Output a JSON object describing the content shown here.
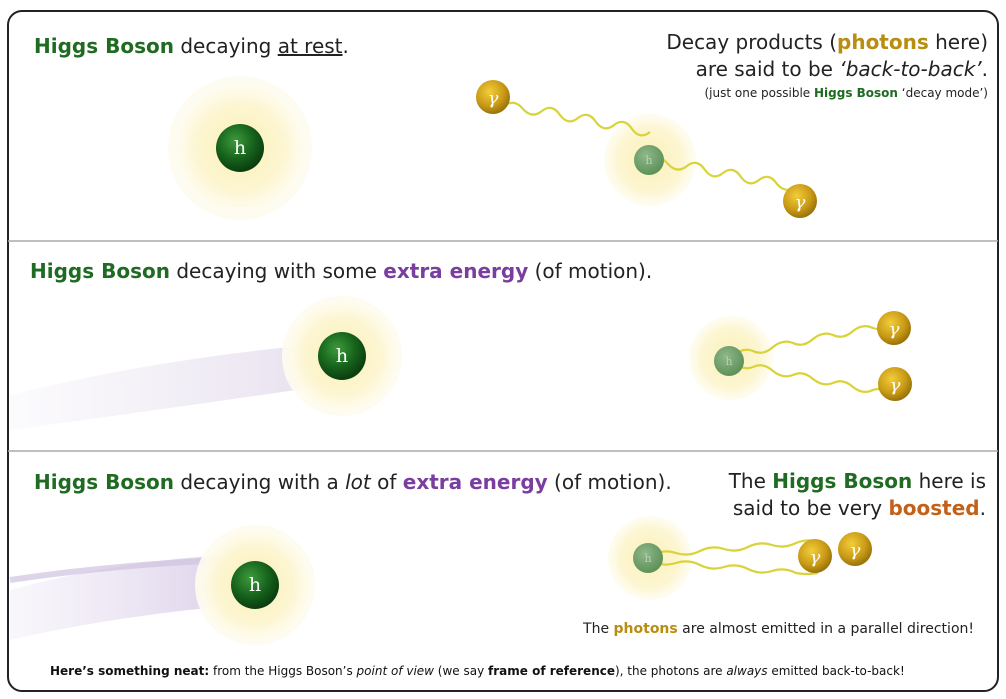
{
  "panel1": {
    "title_subject": "Higgs Boson",
    "title_mid": " decaying ",
    "title_rest": "at rest",
    "title_end": ".",
    "note_line1_a": "Decay products (",
    "note_line1_photons": "photons",
    "note_line1_b": " here)",
    "note_line2_a": "are said to be ",
    "note_line2_b": "‘back-to-back’",
    "note_line2_c": ".",
    "note_line3_a": "(just one possible ",
    "note_line3_higgs": "Higgs Boson",
    "note_line3_b": " ‘decay mode’)"
  },
  "panel2": {
    "title_subject": "Higgs Boson",
    "title_mid": " decaying with some ",
    "title_energy": "extra energy",
    "title_end": " (of motion)."
  },
  "panel3": {
    "title_subject": "Higgs Boson",
    "title_mid1": " decaying with a ",
    "title_lot": "lot",
    "title_mid2": " of ",
    "title_energy": "extra energy",
    "title_end": " (of motion).",
    "note_line1_a": "The ",
    "note_line1_higgs": "Higgs Boson",
    "note_line1_b": " here is",
    "note_line2_a": "said to be very ",
    "note_line2_boosted": "boosted",
    "note_line2_b": ".",
    "photons_a": "The ",
    "photons_word": "photons",
    "photons_b": " are almost emitted in a parallel direction!"
  },
  "footer": {
    "lead": "Here’s something neat:",
    "a": " from the Higgs Boson’s ",
    "pov": "point of view",
    "b": " (we say ",
    "frame": "frame of reference",
    "c": "), the photons are ",
    "always": "always",
    "d": " emitted back-to-back!"
  },
  "particles": {
    "higgs_symbol": "h",
    "photon_symbol": "γ"
  },
  "colors": {
    "higgs_green": "#1f6b22",
    "energy_purple": "#7a3f9e",
    "photon_gold": "#c99a16",
    "boosted_orange": "#c2621a",
    "glow": "#fbf3c4",
    "border": "#222222"
  }
}
